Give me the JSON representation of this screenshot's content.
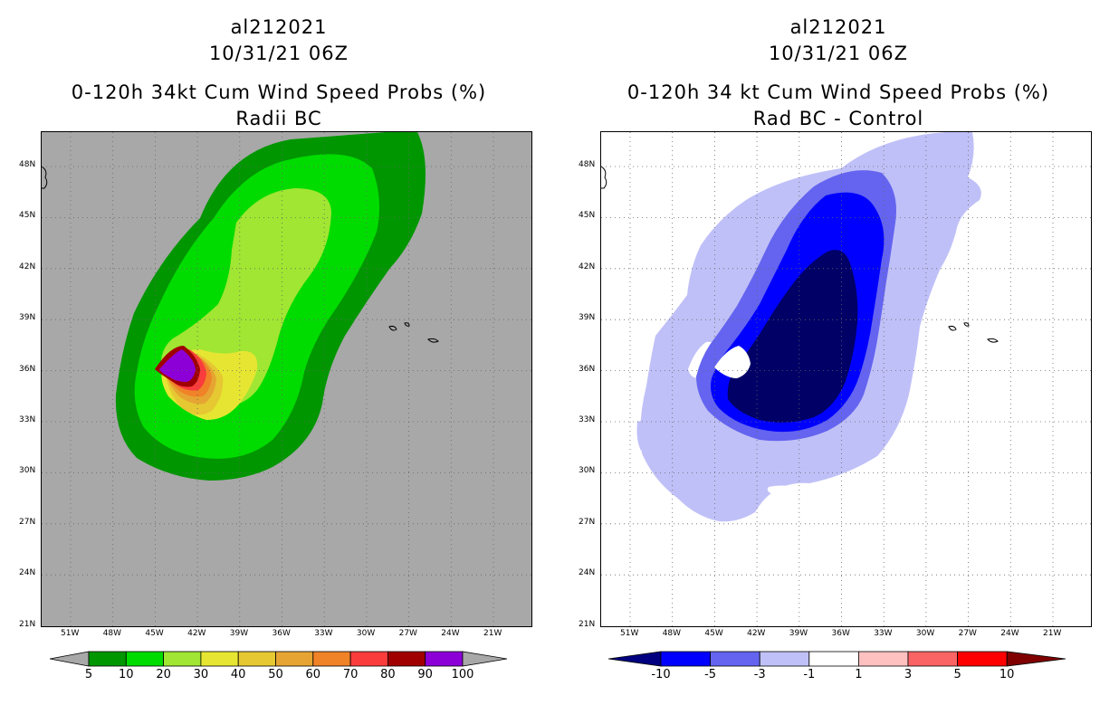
{
  "left_panel": {
    "storm_id": "al212021",
    "datetime": "10/31/21 06Z",
    "product": "0-120h 34kt Cum Wind Speed Probs (%)",
    "subtitle": "Radii BC",
    "background_color": "#a8a8a8",
    "colorbar": {
      "colors": [
        "#009600",
        "#00dc00",
        "#a0e632",
        "#e6e632",
        "#e6c832",
        "#e6a532",
        "#f08228",
        "#fa3c3c",
        "#a00000",
        "#8c00d7"
      ],
      "labels": [
        "5",
        "10",
        "20",
        "30",
        "40",
        "50",
        "60",
        "70",
        "80",
        "90",
        "100"
      ]
    }
  },
  "right_panel": {
    "storm_id": "al212021",
    "datetime": "10/31/21 06Z",
    "product": "0-120h 34 kt Cum Wind Speed Probs (%)",
    "subtitle": "Rad BC - Control",
    "background_color": "#ffffff",
    "colorbar": {
      "colors": [
        "#0000ff",
        "#6464f0",
        "#c0c0f8",
        "#ffffff",
        "#ffc0c0",
        "#fa6464",
        "#ff0000"
      ],
      "left_arrow_color": "#000080",
      "right_arrow_color": "#800000",
      "labels": [
        "-10",
        "-5",
        "-3",
        "-1",
        "1",
        "3",
        "5",
        "10"
      ]
    }
  },
  "axes": {
    "lat_labels": [
      "48N",
      "45N",
      "42N",
      "39N",
      "36N",
      "33N",
      "30N",
      "27N",
      "24N",
      "21N"
    ],
    "lon_labels": [
      "51W",
      "48W",
      "45W",
      "42W",
      "39W",
      "36W",
      "33W",
      "30W",
      "27W",
      "24W",
      "21W"
    ]
  }
}
